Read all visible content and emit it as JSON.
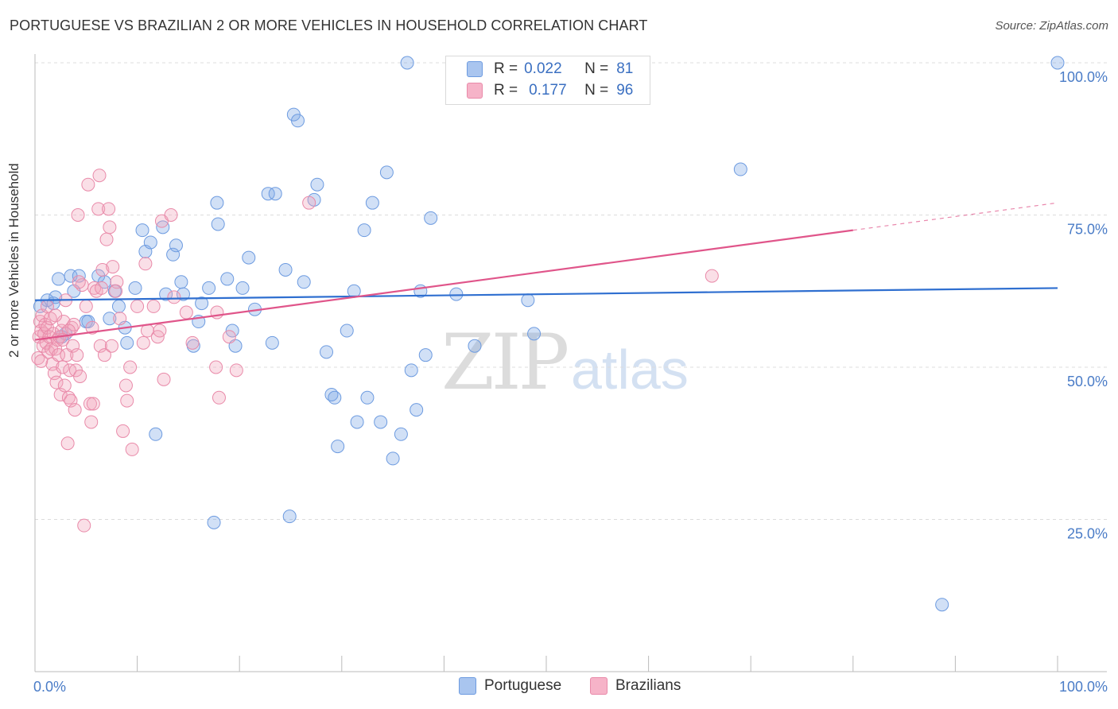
{
  "header": {
    "title": "PORTUGUESE VS BRAZILIAN 2 OR MORE VEHICLES IN HOUSEHOLD CORRELATION CHART",
    "source": "Source: ZipAtlas.com"
  },
  "watermark": {
    "zip": "ZIP",
    "atlas": "atlas"
  },
  "legend": {
    "rows": [
      {
        "r_label": "R =",
        "r_value": "0.022",
        "n_label": "N =",
        "n_value": "81",
        "color": "#a9c5ef"
      },
      {
        "r_label": "R =",
        "r_value": "0.177",
        "n_label": "N =",
        "n_value": "96",
        "color": "#f6b3c8"
      }
    ]
  },
  "bottom_legend": {
    "portuguese": "Portuguese",
    "brazilians": "Brazilians"
  },
  "chart_data": {
    "type": "scatter",
    "title": "PORTUGUESE VS BRAZILIAN 2 OR MORE VEHICLES IN HOUSEHOLD CORRELATION CHART",
    "xlabel": "",
    "ylabel": "2 or more Vehicles in Household",
    "xlim": [
      0,
      100
    ],
    "ylim": [
      0,
      102
    ],
    "x_ticks": [
      "0.0%",
      "100.0%"
    ],
    "y_ticks": [
      {
        "value": 25,
        "label": "25.0%"
      },
      {
        "value": 50,
        "label": "50.0%"
      },
      {
        "value": 75,
        "label": "75.0%"
      },
      {
        "value": 100,
        "label": "100.0%"
      }
    ],
    "grid": true,
    "legend_position": "top-center",
    "series": [
      {
        "name": "Portuguese",
        "color": "#7aa7e6",
        "line_color": "#2f6fd0",
        "trend": {
          "x": [
            0,
            100
          ],
          "y": [
            61.0,
            63.0
          ],
          "dashed_from": null
        },
        "points": [
          [
            1.2,
            61.0
          ],
          [
            1.8,
            60.5
          ],
          [
            2.0,
            61.5
          ],
          [
            2.3,
            64.5
          ],
          [
            3.0,
            55.5
          ],
          [
            3.5,
            65.0
          ],
          [
            3.8,
            62.5
          ],
          [
            4.3,
            65.0
          ],
          [
            5.0,
            57.5
          ],
          [
            5.2,
            57.5
          ],
          [
            6.2,
            65.0
          ],
          [
            6.8,
            64.0
          ],
          [
            7.3,
            58.0
          ],
          [
            7.8,
            62.5
          ],
          [
            8.2,
            60.0
          ],
          [
            8.8,
            56.5
          ],
          [
            9.0,
            54.0
          ],
          [
            9.8,
            63.0
          ],
          [
            10.5,
            72.5
          ],
          [
            10.8,
            69.0
          ],
          [
            11.3,
            70.5
          ],
          [
            11.8,
            39.0
          ],
          [
            12.5,
            73.0
          ],
          [
            12.8,
            62.0
          ],
          [
            13.5,
            68.5
          ],
          [
            13.8,
            70.0
          ],
          [
            14.3,
            64.0
          ],
          [
            14.5,
            62.0
          ],
          [
            15.5,
            53.5
          ],
          [
            16.0,
            57.5
          ],
          [
            16.3,
            60.5
          ],
          [
            17.0,
            63.0
          ],
          [
            17.5,
            24.5
          ],
          [
            17.8,
            77.0
          ],
          [
            17.9,
            73.5
          ],
          [
            18.8,
            64.5
          ],
          [
            19.3,
            56.0
          ],
          [
            19.6,
            53.5
          ],
          [
            20.3,
            63.0
          ],
          [
            20.9,
            68.0
          ],
          [
            21.5,
            59.5
          ],
          [
            22.8,
            78.5
          ],
          [
            23.2,
            54.0
          ],
          [
            23.5,
            78.5
          ],
          [
            24.5,
            66.0
          ],
          [
            24.9,
            25.5
          ],
          [
            25.3,
            91.5
          ],
          [
            25.7,
            90.5
          ],
          [
            26.3,
            64.0
          ],
          [
            27.3,
            77.5
          ],
          [
            27.6,
            80.0
          ],
          [
            28.5,
            52.5
          ],
          [
            29.0,
            45.5
          ],
          [
            29.3,
            45.0
          ],
          [
            29.6,
            37.0
          ],
          [
            30.5,
            56.0
          ],
          [
            31.2,
            62.5
          ],
          [
            31.5,
            41.0
          ],
          [
            32.2,
            72.5
          ],
          [
            32.5,
            45.0
          ],
          [
            33.0,
            77.0
          ],
          [
            33.8,
            41.0
          ],
          [
            34.4,
            82.0
          ],
          [
            35.0,
            35.0
          ],
          [
            35.8,
            39.0
          ],
          [
            36.4,
            100.0
          ],
          [
            36.8,
            49.5
          ],
          [
            37.3,
            43.0
          ],
          [
            37.7,
            62.5
          ],
          [
            38.2,
            52.0
          ],
          [
            38.7,
            74.5
          ],
          [
            41.2,
            62.0
          ],
          [
            43.0,
            53.5
          ],
          [
            45.0,
            100.0
          ],
          [
            48.2,
            61.0
          ],
          [
            48.8,
            55.5
          ],
          [
            69.0,
            82.5
          ],
          [
            88.7,
            11.0
          ],
          [
            100.0,
            100.0
          ],
          [
            0.5,
            60.0
          ],
          [
            2.6,
            55.0
          ]
        ]
      },
      {
        "name": "Brazilians",
        "color": "#f2a2bb",
        "line_color": "#e0558a",
        "trend": {
          "x": [
            0,
            80,
            100
          ],
          "y": [
            54.5,
            72.5,
            77.0
          ],
          "dashed_from": 80
        },
        "points": [
          [
            0.3,
            51.5
          ],
          [
            0.4,
            55.0
          ],
          [
            0.5,
            57.5
          ],
          [
            0.6,
            56.0
          ],
          [
            0.7,
            58.5
          ],
          [
            0.8,
            53.5
          ],
          [
            0.9,
            55.5
          ],
          [
            1.0,
            57.0
          ],
          [
            1.1,
            54.0
          ],
          [
            1.2,
            56.5
          ],
          [
            1.3,
            52.5
          ],
          [
            1.4,
            55.0
          ],
          [
            1.5,
            58.0
          ],
          [
            1.6,
            53.0
          ],
          [
            1.7,
            50.5
          ],
          [
            1.8,
            55.5
          ],
          [
            1.9,
            49.0
          ],
          [
            2.0,
            53.0
          ],
          [
            2.1,
            47.5
          ],
          [
            2.2,
            54.5
          ],
          [
            2.3,
            52.0
          ],
          [
            2.4,
            55.0
          ],
          [
            2.5,
            45.5
          ],
          [
            2.6,
            56.0
          ],
          [
            2.7,
            50.0
          ],
          [
            2.8,
            57.5
          ],
          [
            2.9,
            47.0
          ],
          [
            3.0,
            61.0
          ],
          [
            3.1,
            52.0
          ],
          [
            3.2,
            37.5
          ],
          [
            3.3,
            45.0
          ],
          [
            3.4,
            49.5
          ],
          [
            3.5,
            44.5
          ],
          [
            3.6,
            56.5
          ],
          [
            3.7,
            53.5
          ],
          [
            3.8,
            57.0
          ],
          [
            3.9,
            43.0
          ],
          [
            4.0,
            49.5
          ],
          [
            4.1,
            52.0
          ],
          [
            4.2,
            75.0
          ],
          [
            4.4,
            48.5
          ],
          [
            4.6,
            63.5
          ],
          [
            4.8,
            24.0
          ],
          [
            5.0,
            60.0
          ],
          [
            5.2,
            80.0
          ],
          [
            5.4,
            44.0
          ],
          [
            5.5,
            41.0
          ],
          [
            5.6,
            56.5
          ],
          [
            5.8,
            63.0
          ],
          [
            6.0,
            62.5
          ],
          [
            6.2,
            76.0
          ],
          [
            6.3,
            81.5
          ],
          [
            6.4,
            53.5
          ],
          [
            6.6,
            66.0
          ],
          [
            6.8,
            52.0
          ],
          [
            7.0,
            71.0
          ],
          [
            7.2,
            76.0
          ],
          [
            7.3,
            73.0
          ],
          [
            7.5,
            53.5
          ],
          [
            7.6,
            66.5
          ],
          [
            8.0,
            64.0
          ],
          [
            8.3,
            58.0
          ],
          [
            8.6,
            39.5
          ],
          [
            8.9,
            47.0
          ],
          [
            9.0,
            44.5
          ],
          [
            9.3,
            50.0
          ],
          [
            9.5,
            36.5
          ],
          [
            10.0,
            60.0
          ],
          [
            10.6,
            54.0
          ],
          [
            10.8,
            67.0
          ],
          [
            11.0,
            56.0
          ],
          [
            11.6,
            60.0
          ],
          [
            12.0,
            55.0
          ],
          [
            12.2,
            56.0
          ],
          [
            12.4,
            74.0
          ],
          [
            12.6,
            48.0
          ],
          [
            13.3,
            75.0
          ],
          [
            13.6,
            61.5
          ],
          [
            14.8,
            59.0
          ],
          [
            15.4,
            54.0
          ],
          [
            17.7,
            50.0
          ],
          [
            17.8,
            59.0
          ],
          [
            18.0,
            45.0
          ],
          [
            19.0,
            55.0
          ],
          [
            19.7,
            49.5
          ],
          [
            26.8,
            77.0
          ],
          [
            66.2,
            65.0
          ],
          [
            0.6,
            51.0
          ],
          [
            1.2,
            60.0
          ],
          [
            2.0,
            58.5
          ],
          [
            6.5,
            63.0
          ],
          [
            5.7,
            44.0
          ],
          [
            4.3,
            64.0
          ],
          [
            3.3,
            56.0
          ],
          [
            2.7,
            54.5
          ],
          [
            7.9,
            62.5
          ]
        ]
      }
    ]
  }
}
